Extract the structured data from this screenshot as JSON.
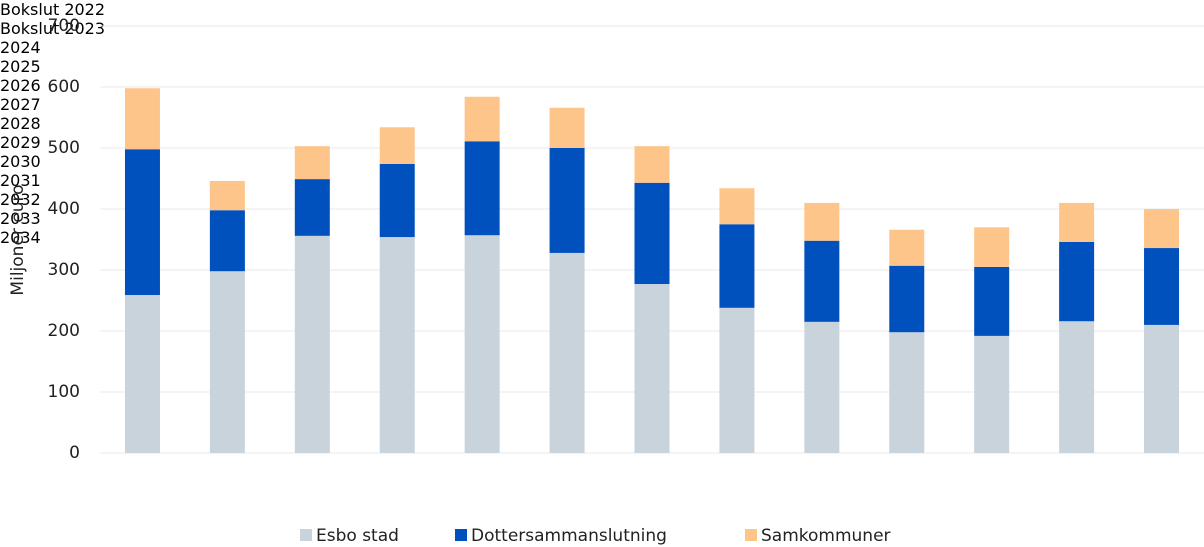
{
  "chart_data": {
    "type": "bar",
    "stacked": true,
    "y_label": "Miljoner euro",
    "categories": [
      "Bokslut 2022",
      "Bokslut 2023",
      "2024",
      "2025",
      "2026",
      "2027",
      "2028",
      "2029",
      "2030",
      "2031",
      "2032",
      "2033",
      "2034"
    ],
    "series": [
      {
        "name": "Esbo stad",
        "color": "#c9d3dc",
        "values": [
          259,
          298,
          356,
          354,
          357,
          328,
          277,
          238,
          215,
          198,
          192,
          216,
          210
        ]
      },
      {
        "name": "Dottersammanslutning",
        "color": "#0050be",
        "values": [
          239,
          100,
          93,
          120,
          154,
          172,
          166,
          137,
          133,
          109,
          113,
          130,
          126
        ]
      },
      {
        "name": "Samkommuner",
        "color": "#fec58a",
        "values": [
          100,
          48,
          54,
          60,
          73,
          66,
          60,
          59,
          62,
          59,
          65,
          64,
          64
        ]
      }
    ],
    "ylim": [
      0,
      700
    ],
    "yticks": [
      0,
      100,
      200,
      300,
      400,
      500,
      600,
      700
    ],
    "grid": true,
    "legend": "bottom"
  }
}
